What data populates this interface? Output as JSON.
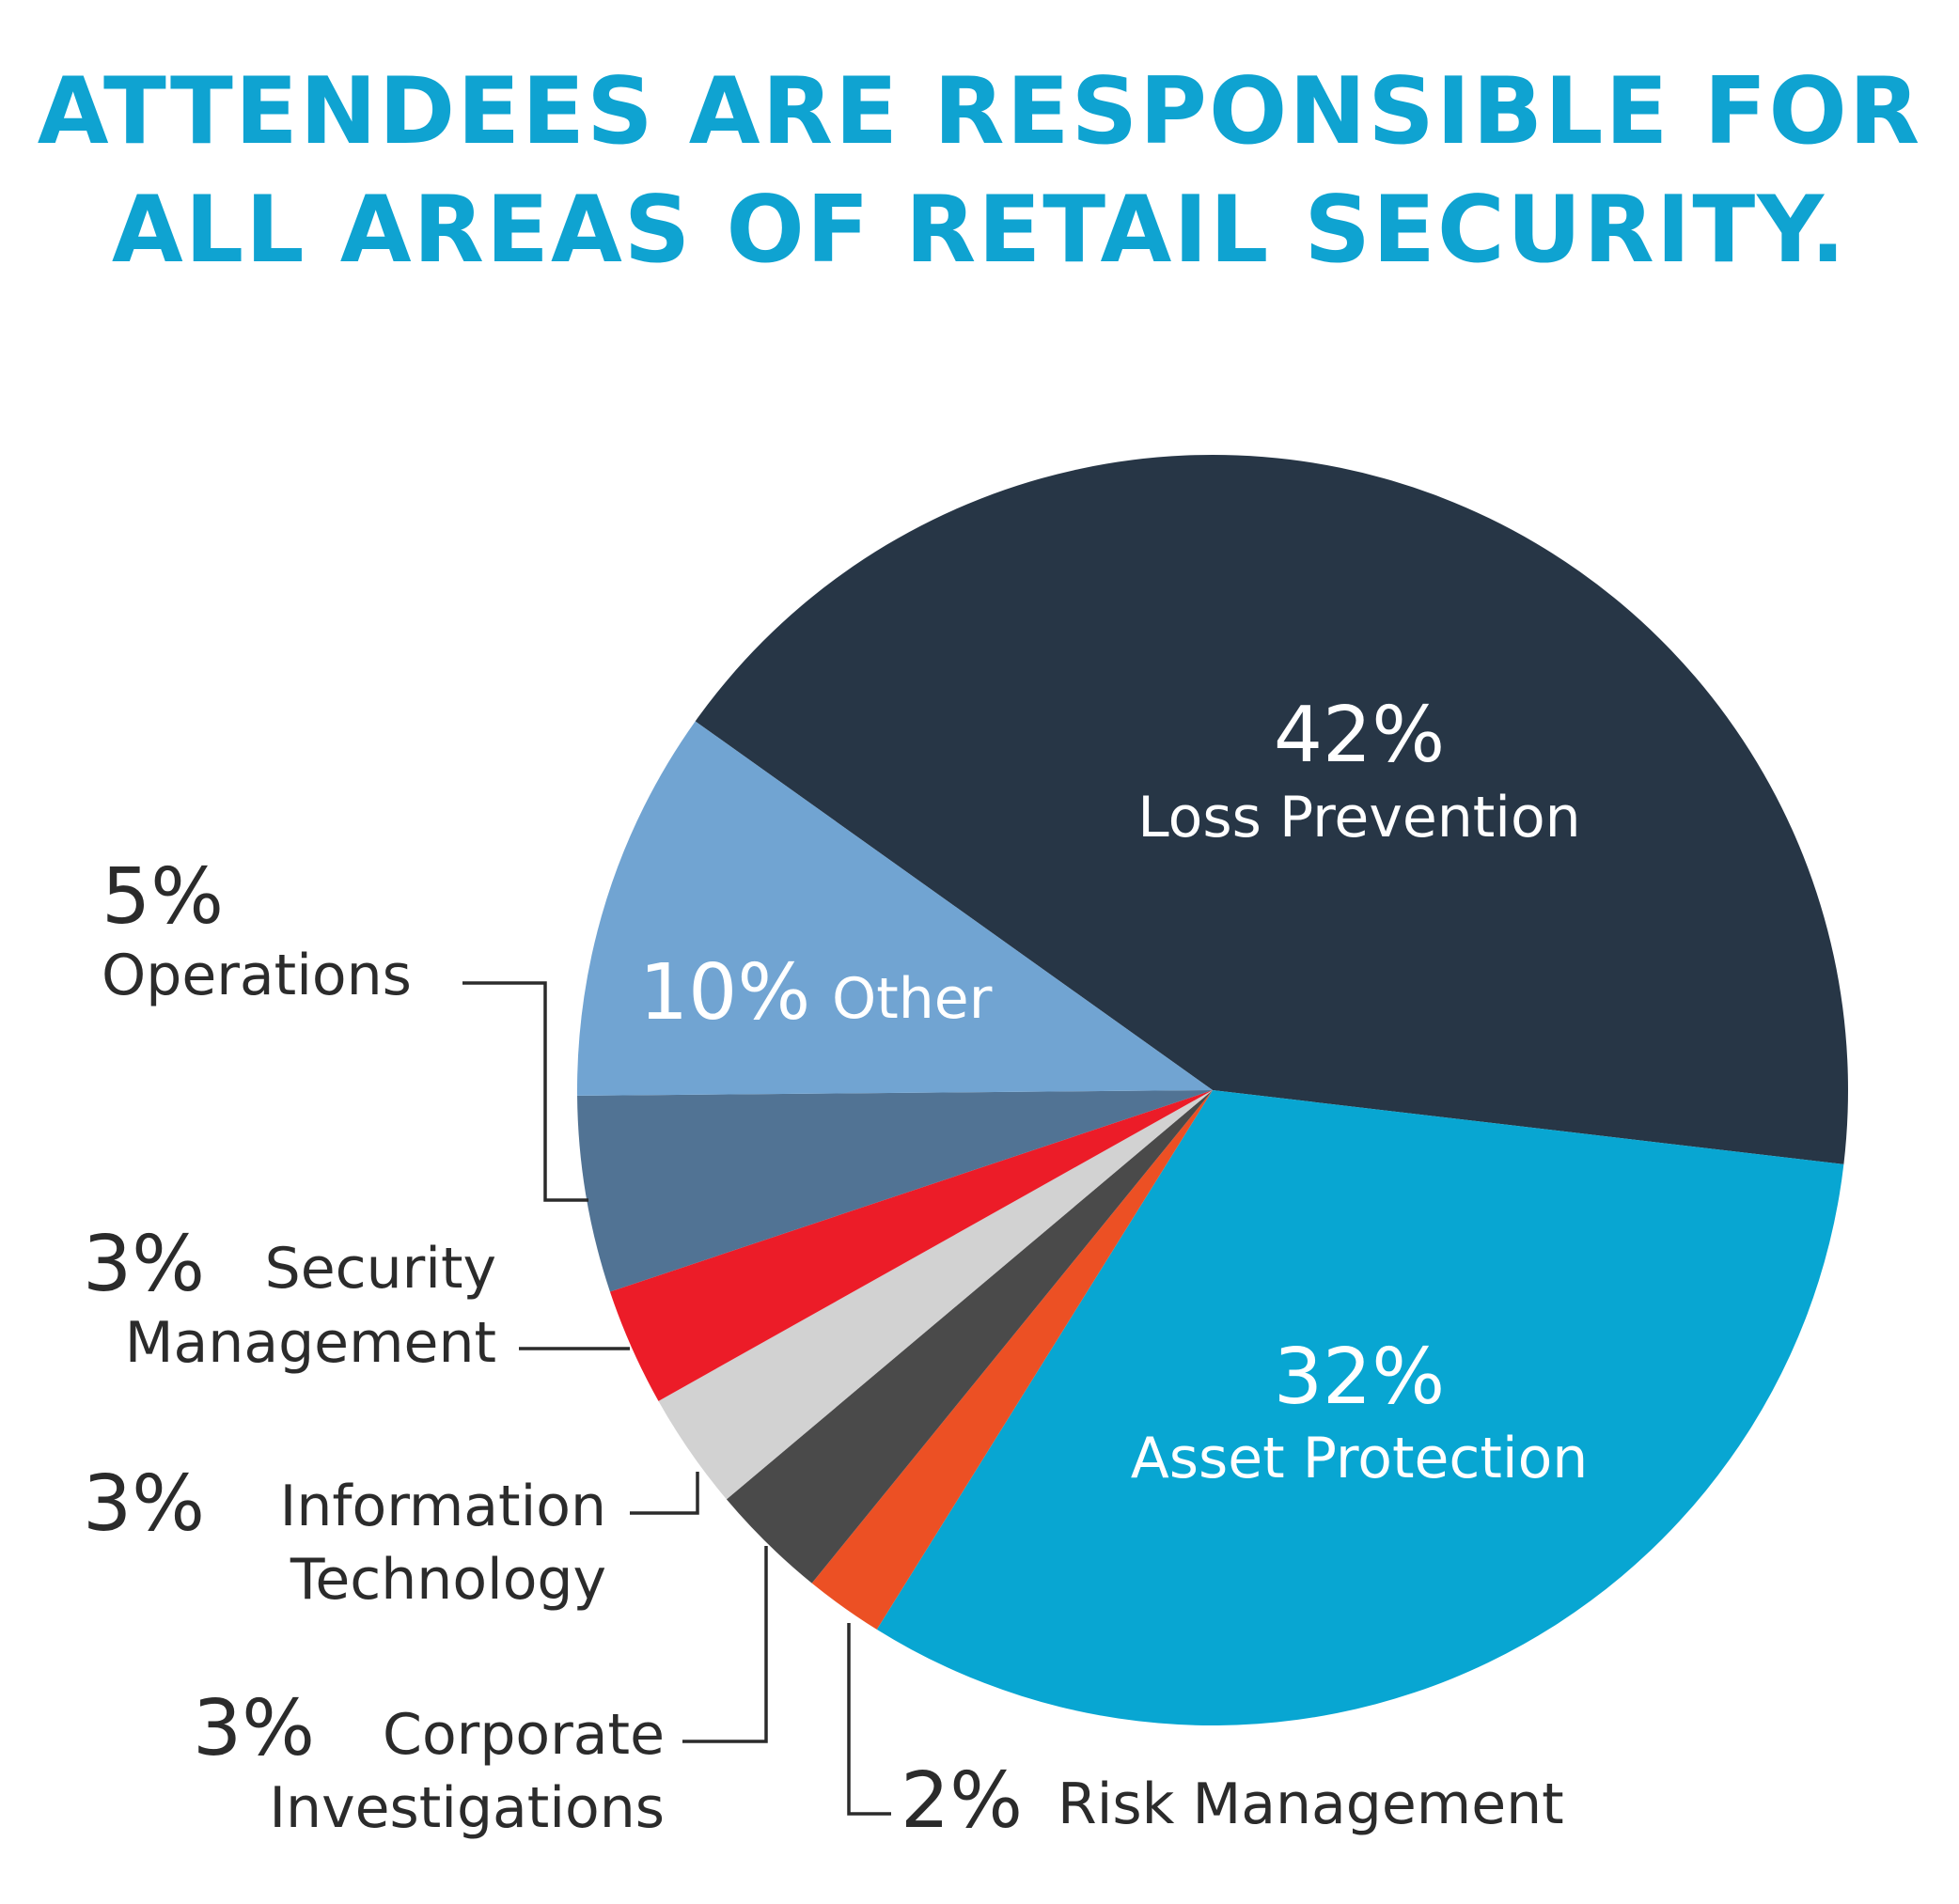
{
  "title": {
    "line1": "ATTENDEES ARE RESPONSIBLE FOR",
    "line2": "ALL AREAS OF RETAIL SECURITY."
  },
  "chart_data": {
    "type": "pie",
    "title": "ATTENDEES ARE RESPONSIBLE FOR ALL AREAS OF RETAIL SECURITY.",
    "slices": [
      {
        "label": "Loss Prevention",
        "pct_text": "42%",
        "value": 42,
        "color": "#273646"
      },
      {
        "label": "Asset Protection",
        "pct_text": "32%",
        "value": 32,
        "color": "#08a6d2"
      },
      {
        "label": "Risk Management",
        "pct_text": "2%",
        "value": 2,
        "color": "#ec5024"
      },
      {
        "label_line1": "Corporate",
        "label_line2": "Investigations",
        "label": "Corporate Investigations",
        "pct_text": "3%",
        "value": 3,
        "color": "#4a4a4a"
      },
      {
        "label_line1": "Information",
        "label_line2": "Technology",
        "label": "Information Technology",
        "pct_text": "3%",
        "value": 3,
        "color": "#d2d2d2"
      },
      {
        "label_line1": "Security",
        "label_line2": "Management",
        "label": "Security Management",
        "pct_text": "3%",
        "value": 3,
        "color": "#ec1c28"
      },
      {
        "label": "Operations",
        "pct_text": "5%",
        "value": 5,
        "color": "#517394"
      },
      {
        "label": "Other",
        "pct_text": "10%",
        "value": 10,
        "color": "#71a4d2"
      }
    ]
  }
}
